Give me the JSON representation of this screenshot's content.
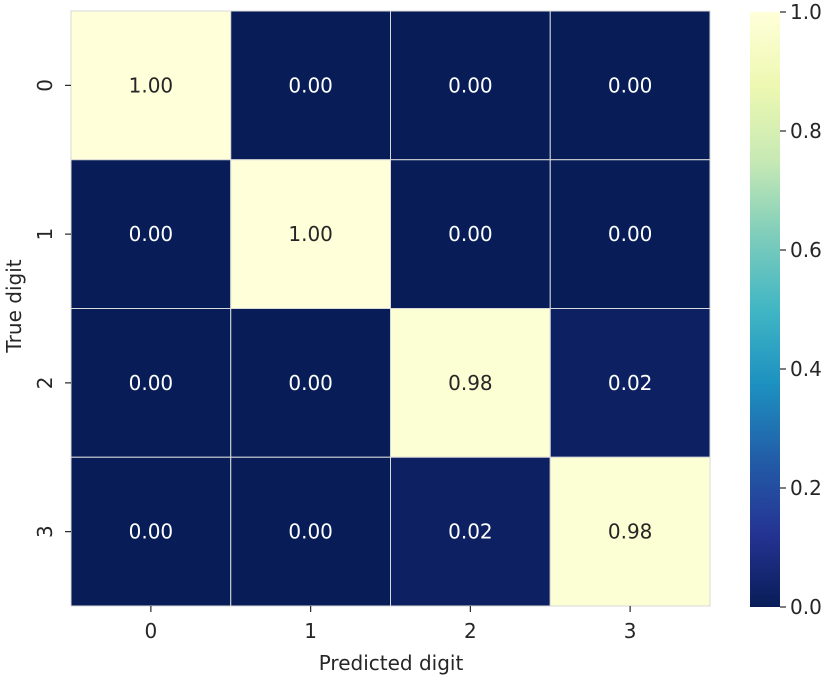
{
  "chart_data": {
    "type": "heatmap",
    "title": "",
    "xlabel": "Predicted digit",
    "ylabel": "True digit",
    "x_categories": [
      "0",
      "1",
      "2",
      "3"
    ],
    "y_categories": [
      "0",
      "1",
      "2",
      "3"
    ],
    "values": [
      [
        1.0,
        0.0,
        0.0,
        0.0
      ],
      [
        0.0,
        1.0,
        0.0,
        0.0
      ],
      [
        0.0,
        0.0,
        0.98,
        0.02
      ],
      [
        0.0,
        0.0,
        0.02,
        0.98
      ]
    ],
    "value_labels": [
      [
        "1.00",
        "0.00",
        "0.00",
        "0.00"
      ],
      [
        "0.00",
        "1.00",
        "0.00",
        "0.00"
      ],
      [
        "0.00",
        "0.00",
        "0.98",
        "0.02"
      ],
      [
        "0.00",
        "0.00",
        "0.02",
        "0.98"
      ]
    ],
    "colormap": "YlGnBu_r",
    "vmin": 0.0,
    "vmax": 1.0,
    "colorbar_ticks": [
      "0.0",
      "0.2",
      "0.4",
      "0.6",
      "0.8",
      "1.0"
    ],
    "colorbar_stops": [
      "#081d58",
      "#253494",
      "#225ea8",
      "#1d91c0",
      "#41b6c4",
      "#7fcdbb",
      "#c7e9b4",
      "#edf8b1",
      "#ffffd9"
    ],
    "grid": true,
    "legend": "colorbar-right"
  }
}
